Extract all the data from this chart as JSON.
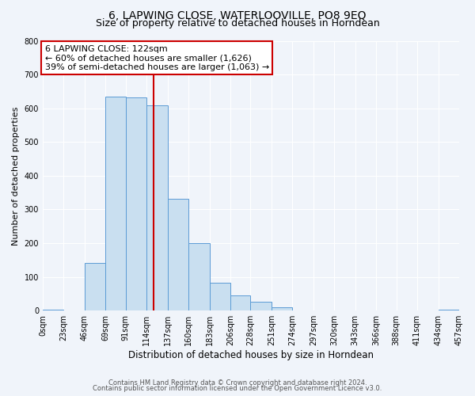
{
  "title": "6, LAPWING CLOSE, WATERLOOVILLE, PO8 9EQ",
  "subtitle": "Size of property relative to detached houses in Horndean",
  "xlabel": "Distribution of detached houses by size in Horndean",
  "ylabel": "Number of detached properties",
  "bin_labels": [
    "0sqm",
    "23sqm",
    "46sqm",
    "69sqm",
    "91sqm",
    "114sqm",
    "137sqm",
    "160sqm",
    "183sqm",
    "206sqm",
    "228sqm",
    "251sqm",
    "274sqm",
    "297sqm",
    "320sqm",
    "343sqm",
    "366sqm",
    "388sqm",
    "411sqm",
    "434sqm",
    "457sqm"
  ],
  "bar_left_edges": [
    0,
    23,
    46,
    69,
    91,
    114,
    137,
    160,
    183,
    206,
    228,
    251,
    274,
    297,
    320,
    343,
    366,
    388,
    411,
    434
  ],
  "bar_widths": [
    23,
    23,
    23,
    22,
    23,
    23,
    23,
    23,
    23,
    22,
    23,
    23,
    23,
    23,
    23,
    23,
    22,
    23,
    23,
    23
  ],
  "bar_heights": [
    2,
    0,
    142,
    635,
    632,
    608,
    332,
    199,
    82,
    46,
    27,
    10,
    0,
    0,
    0,
    0,
    0,
    0,
    0,
    2
  ],
  "bar_color": "#c9dff0",
  "bar_edge_color": "#5b9bd5",
  "property_line_x": 122,
  "property_line_color": "#cc0000",
  "ylim": [
    0,
    800
  ],
  "yticks": [
    0,
    100,
    200,
    300,
    400,
    500,
    600,
    700,
    800
  ],
  "annotation_text": "6 LAPWING CLOSE: 122sqm\n← 60% of detached houses are smaller (1,626)\n39% of semi-detached houses are larger (1,063) →",
  "annotation_box_color": "#ffffff",
  "annotation_box_edge_color": "#cc0000",
  "footer_line1": "Contains HM Land Registry data © Crown copyright and database right 2024.",
  "footer_line2": "Contains public sector information licensed under the Open Government Licence v3.0.",
  "bg_color": "#f0f4fa",
  "grid_color": "#ffffff",
  "title_fontsize": 10,
  "subtitle_fontsize": 9,
  "annotation_fontsize": 8,
  "ylabel_fontsize": 8,
  "xlabel_fontsize": 8.5,
  "tick_fontsize": 7,
  "footer_fontsize": 6
}
